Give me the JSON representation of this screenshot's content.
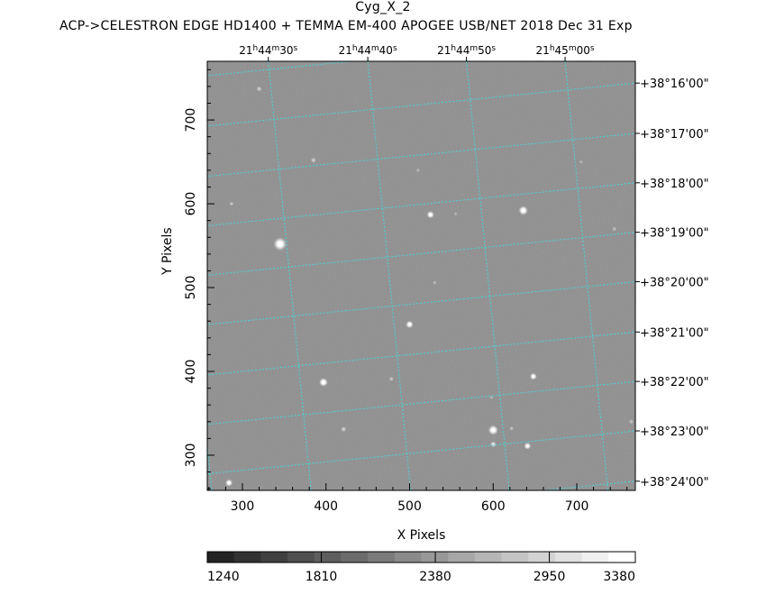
{
  "header": {
    "title": "Cyg_X_2",
    "subtitle": "ACP->CELESTRON EDGE HD1400 + TEMMA EM-400 APOGEE USB/NET   2018 Dec 31    Exp"
  },
  "chart_data": {
    "type": "heatmap",
    "xlabel": "X Pixels",
    "ylabel": "Y Pixels",
    "xlim": [
      258,
      770
    ],
    "ylim": [
      258,
      770
    ],
    "x_ticks": [
      300,
      400,
      500,
      600,
      700
    ],
    "y_ticks": [
      300,
      400,
      500,
      600,
      700
    ],
    "ra_ticks": [
      {
        "h": "21",
        "m": "44",
        "s": "30",
        "x": 331
      },
      {
        "h": "21",
        "m": "44",
        "s": "40",
        "x": 450
      },
      {
        "h": "21",
        "m": "44",
        "s": "50",
        "x": 568
      },
      {
        "h": "21",
        "m": "45",
        "s": "00",
        "x": 686
      }
    ],
    "dec_ticks": [
      {
        "label": "+38°16'00\"",
        "y": 744
      },
      {
        "label": "+38°17'00\"",
        "y": 684
      },
      {
        "label": "+38°18'00\"",
        "y": 625
      },
      {
        "label": "+38°19'00\"",
        "y": 566
      },
      {
        "label": "+38°20'00\"",
        "y": 507
      },
      {
        "label": "+38°21'00\"",
        "y": 447
      },
      {
        "label": "+38°22'00\"",
        "y": 388
      },
      {
        "label": "+38°23'00\"",
        "y": 329
      },
      {
        "label": "+38°24'00\"",
        "y": 269
      }
    ],
    "stars": [
      {
        "x": 345,
        "y": 552,
        "size": 4.5,
        "b": 1.0
      },
      {
        "x": 636,
        "y": 592,
        "size": 3.2,
        "b": 1.0
      },
      {
        "x": 525,
        "y": 587,
        "size": 2.6,
        "b": 0.9
      },
      {
        "x": 500,
        "y": 456,
        "size": 2.6,
        "b": 0.95
      },
      {
        "x": 397,
        "y": 387,
        "size": 3.0,
        "b": 1.0
      },
      {
        "x": 648,
        "y": 394,
        "size": 2.4,
        "b": 0.9
      },
      {
        "x": 600,
        "y": 330,
        "size": 3.4,
        "b": 1.0
      },
      {
        "x": 641,
        "y": 311,
        "size": 2.4,
        "b": 0.95
      },
      {
        "x": 600,
        "y": 313,
        "size": 2.0,
        "b": 0.8
      },
      {
        "x": 284,
        "y": 267,
        "size": 2.6,
        "b": 0.9
      },
      {
        "x": 421,
        "y": 331,
        "size": 1.8,
        "b": 0.6
      },
      {
        "x": 478,
        "y": 391,
        "size": 1.6,
        "b": 0.5
      },
      {
        "x": 622,
        "y": 332,
        "size": 1.5,
        "b": 0.45
      },
      {
        "x": 385,
        "y": 652,
        "size": 1.8,
        "b": 0.55
      },
      {
        "x": 320,
        "y": 737,
        "size": 1.8,
        "b": 0.55
      },
      {
        "x": 287,
        "y": 600,
        "size": 1.5,
        "b": 0.5
      },
      {
        "x": 530,
        "y": 506,
        "size": 1.4,
        "b": 0.4
      },
      {
        "x": 745,
        "y": 570,
        "size": 1.6,
        "b": 0.45
      },
      {
        "x": 765,
        "y": 340,
        "size": 1.6,
        "b": 0.45
      },
      {
        "x": 510,
        "y": 640,
        "size": 1.3,
        "b": 0.4
      },
      {
        "x": 555,
        "y": 588,
        "size": 1.3,
        "b": 0.35
      },
      {
        "x": 598,
        "y": 369,
        "size": 1.3,
        "b": 0.35
      },
      {
        "x": 705,
        "y": 650,
        "size": 1.3,
        "b": 0.35
      }
    ],
    "colorbar": {
      "tick_labels": [
        "1240",
        "1810",
        "2380",
        "2950",
        "3380"
      ],
      "tick_values": [
        1240,
        1810,
        2380,
        2950,
        3380
      ],
      "min": 1240,
      "max": 3380,
      "segments": 16
    },
    "grid": true,
    "colormap": "grayscale"
  }
}
